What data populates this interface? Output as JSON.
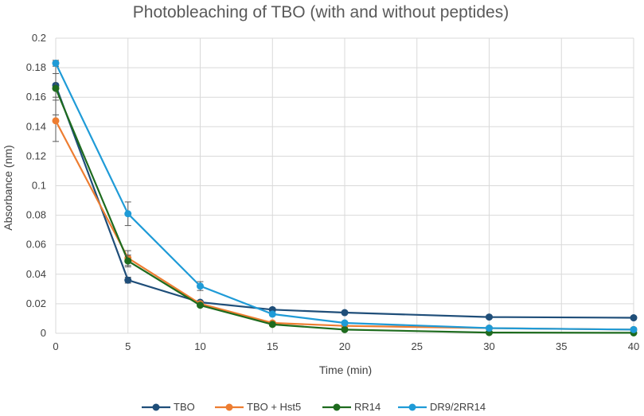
{
  "chart_data": {
    "type": "line",
    "title": "Photobleaching of TBO (with and without peptides)",
    "xlabel": "Time (min)",
    "ylabel": "Absorbance (nm)",
    "xlim": [
      0,
      40
    ],
    "ylim": [
      0,
      0.2
    ],
    "x_ticks": [
      0,
      5,
      10,
      15,
      20,
      25,
      30,
      35,
      40
    ],
    "y_ticks": [
      0,
      0.02,
      0.04,
      0.06,
      0.08,
      0.1,
      0.12,
      0.14,
      0.16,
      0.18,
      0.2
    ],
    "x_tick_labels": [
      "0",
      "5",
      "10",
      "15",
      "20",
      "25",
      "30",
      "35",
      "40"
    ],
    "y_tick_labels": [
      "0",
      "0.02",
      "0.04",
      "0.06",
      "0.08",
      "0.1",
      "0.12",
      "0.14",
      "0.16",
      "0.18",
      "0.2"
    ],
    "grid": true,
    "legend_position": "bottom",
    "series": [
      {
        "name": "TBO",
        "color": "#1f4e79",
        "x": [
          0,
          5,
          10,
          15,
          20,
          30,
          40
        ],
        "y": [
          0.168,
          0.036,
          0.021,
          0.016,
          0.014,
          0.011,
          0.0105
        ],
        "err": [
          0.008,
          0.002,
          0.001,
          0.001,
          0.001,
          0.001,
          0.001
        ]
      },
      {
        "name": "TBO + Hst5",
        "color": "#ed7d31",
        "x": [
          0,
          5,
          10,
          15,
          20,
          30,
          40
        ],
        "y": [
          0.144,
          0.051,
          0.02,
          0.007,
          0.005,
          0.0035,
          0.0025
        ],
        "err": [
          0.014,
          0.005,
          0.001,
          0.001,
          0.001,
          0.001,
          0.001
        ]
      },
      {
        "name": "RR14",
        "color": "#1e6b1e",
        "x": [
          0,
          5,
          10,
          15,
          20,
          30,
          40
        ],
        "y": [
          0.166,
          0.049,
          0.019,
          0.006,
          0.0025,
          0.0005,
          0.0003
        ],
        "err": [
          0.018,
          0.004,
          0.001,
          0.001,
          0.001,
          0.0005,
          0.0005
        ]
      },
      {
        "name": "DR9/2RR14",
        "color": "#1f9bd7",
        "x": [
          0,
          5,
          10,
          15,
          20,
          30,
          40
        ],
        "y": [
          0.183,
          0.081,
          0.032,
          0.013,
          0.007,
          0.0035,
          0.0025
        ],
        "err": [
          0.002,
          0.008,
          0.003,
          0.001,
          0.001,
          0.001,
          0.001
        ]
      }
    ]
  }
}
